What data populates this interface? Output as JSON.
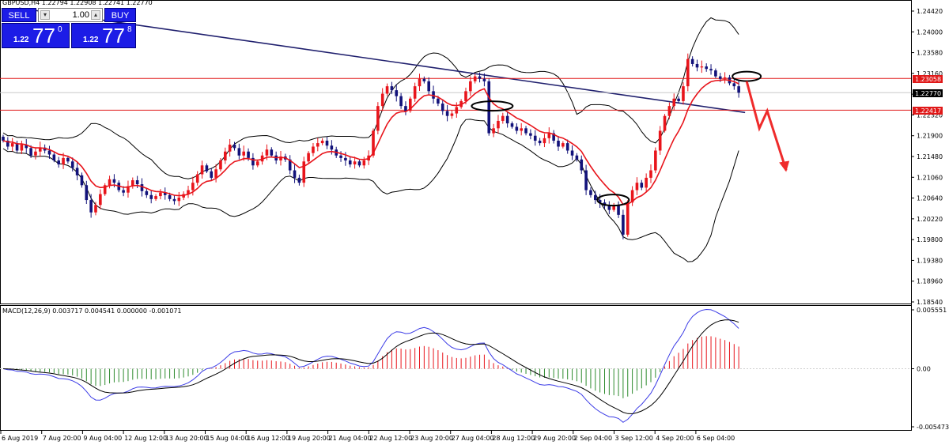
{
  "header": {
    "symbol_text": "GBPUSD,H4  1.22794 1.22908 1.22741 1.22770"
  },
  "trade_panel": {
    "sell_label": "SELL",
    "buy_label": "BUY",
    "lot_value": "1.00",
    "sell_prefix": "1.22",
    "sell_big": "77",
    "sell_sup": "0",
    "buy_prefix": "1.22",
    "buy_big": "77",
    "buy_sup": "8"
  },
  "price_tags": {
    "upper_line": "1.23058",
    "current": "1.22770",
    "lower_line": "1.22417"
  },
  "indicator": {
    "label": "MACD(12,26,9) 0.003717 0.004541 0.000000 -0.001071"
  },
  "colors": {
    "bull": "#e8141b",
    "bear": "#12127a",
    "bands": "#000000",
    "ma": "#e8141b",
    "trend": "#20206e",
    "hline": "#e01818",
    "macd_pos": "#e8141b",
    "macd_neg": "#2e8b2e",
    "macd_main": "#3b3be6",
    "macd_signal": "#000000"
  },
  "chart_data": [
    {
      "type": "candlestick",
      "symbol": "GBPUSD",
      "timeframe": "H4",
      "ylim": [
        1.1854,
        1.2442
      ],
      "y_ticks": [
        "1.24420",
        "1.24000",
        "1.23580",
        "1.23160",
        "1.22740",
        "1.22320",
        "1.21900",
        "1.21480",
        "1.21060",
        "1.20640",
        "1.20220",
        "1.19800",
        "1.19380",
        "1.18960",
        "1.18540"
      ],
      "x_ticks": [
        "6 Aug 2019",
        "7 Aug 20:00",
        "9 Aug 04:00",
        "12 Aug 12:00",
        "13 Aug 20:00",
        "15 Aug 04:00",
        "16 Aug 12:00",
        "19 Aug 20:00",
        "21 Aug 04:00",
        "22 Aug 12:00",
        "23 Aug 20:00",
        "27 Aug 04:00",
        "28 Aug 12:00",
        "29 Aug 20:00",
        "2 Sep 04:00",
        "3 Sep 12:00",
        "4 Sep 20:00",
        "6 Sep 04:00"
      ],
      "horizontal_lines": [
        1.23058,
        1.22417
      ],
      "current_price": 1.2277,
      "close": [
        1.218,
        1.2168,
        1.2175,
        1.216,
        1.2172,
        1.2165,
        1.215,
        1.2158,
        1.2166,
        1.216,
        1.2152,
        1.214,
        1.2132,
        1.2145,
        1.2138,
        1.2125,
        1.211,
        1.209,
        1.206,
        1.2035,
        1.205,
        1.2072,
        1.209,
        1.2102,
        1.2095,
        1.208,
        1.2075,
        1.2088,
        1.21,
        1.2092,
        1.2078,
        1.207,
        1.2062,
        1.2068,
        1.2075,
        1.207,
        1.2062,
        1.2058,
        1.2065,
        1.2072,
        1.208,
        1.2095,
        1.2112,
        1.213,
        1.2118,
        1.2105,
        1.2122,
        1.214,
        1.2158,
        1.2172,
        1.2165,
        1.215,
        1.2158,
        1.2145,
        1.213,
        1.2138,
        1.215,
        1.2162,
        1.215,
        1.214,
        1.2148,
        1.2142,
        1.212,
        1.2105,
        1.2095,
        1.2138,
        1.2155,
        1.2168,
        1.2175,
        1.218,
        1.217,
        1.2162,
        1.215,
        1.2145,
        1.214,
        1.2132,
        1.2138,
        1.213,
        1.214,
        1.215,
        1.22,
        1.225,
        1.2275,
        1.229,
        1.2282,
        1.227,
        1.225,
        1.224,
        1.2265,
        1.229,
        1.2305,
        1.23,
        1.228,
        1.2265,
        1.2255,
        1.224,
        1.223,
        1.2235,
        1.2248,
        1.226,
        1.228,
        1.23,
        1.231,
        1.2305,
        1.23,
        1.2195,
        1.2205,
        1.222,
        1.223,
        1.2215,
        1.2208,
        1.22,
        1.2205,
        1.2195,
        1.219,
        1.218,
        1.2175,
        1.2185,
        1.2195,
        1.218,
        1.2168,
        1.2175,
        1.216,
        1.215,
        1.2142,
        1.212,
        1.208,
        1.207,
        1.206,
        1.2055,
        1.2048,
        1.204,
        1.205,
        1.203,
        1.199,
        1.2055,
        1.208,
        1.2095,
        1.2085,
        1.2105,
        1.212,
        1.216,
        1.22,
        1.223,
        1.225,
        1.2265,
        1.226,
        1.229,
        1.2345,
        1.2335,
        1.2328,
        1.233,
        1.2325,
        1.2322,
        1.231,
        1.2305,
        1.2308,
        1.2296,
        1.229,
        1.2277
      ]
    },
    {
      "type": "line+bar",
      "name": "MACD(12,26,9)",
      "ylim": [
        -0.005473,
        0.005551
      ],
      "y_ticks": [
        "0.005551",
        "0.00",
        "-0.005473"
      ],
      "main": 0.003717,
      "signal": 0.004541
    }
  ]
}
